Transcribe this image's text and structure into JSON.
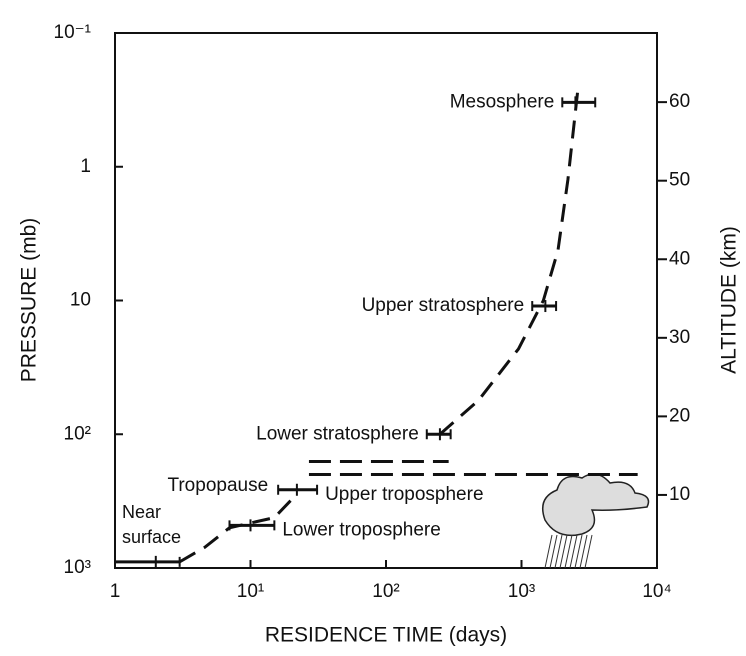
{
  "chart_data": {
    "type": "errorbar",
    "x_label": "RESIDENCE TIME (days)",
    "y_label": "PRESSURE (mb)",
    "y2_label": "ALTITUDE (km)",
    "xscale": "log",
    "yscale": "log",
    "xlim": [
      1,
      10000
    ],
    "ylim": [
      1000,
      0.1
    ],
    "y2lim": [
      0.7,
      68.8
    ],
    "xticks": [
      1,
      {
        "value": 10,
        "label": "10¹"
      },
      {
        "value": 100,
        "label": "10²"
      },
      {
        "value": 1000,
        "label": "10³"
      },
      {
        "value": 10000,
        "label": "10⁴"
      }
    ],
    "yticks": [
      {
        "value": 0.1,
        "label": "10⁻¹"
      },
      1,
      10,
      {
        "value": 100,
        "label": "10²"
      },
      {
        "value": 1000,
        "label": "10³"
      }
    ],
    "y2ticks": [
      10,
      20,
      30,
      40,
      50,
      60
    ],
    "color": "#111111",
    "points": {
      "labels": [
        "Mesosphere",
        "Upper stratosphere",
        "Lower stratosphere",
        "Upper troposphere",
        "Lower troposphere",
        "Near surface"
      ],
      "x": [
        2500,
        1500,
        250,
        22,
        10,
        2
      ],
      "xmin": [
        2000,
        1200,
        200,
        16,
        7,
        1
      ],
      "xmax": [
        3500,
        1800,
        300,
        31,
        15,
        3
      ],
      "y": [
        0.33,
        11,
        100,
        260,
        480,
        900
      ]
    },
    "profile": {
      "x": [
        3,
        4.6,
        7,
        15,
        22,
        null,
        250,
        480,
        950,
        1450,
        1860,
        2200,
        2600
      ],
      "y": [
        900,
        700,
        500,
        420,
        280,
        null,
        100,
        56,
        23,
        10,
        4.2,
        1.25,
        0.27
      ]
    },
    "tropopause": {
      "label": "Tropopause",
      "lines": [
        {
          "y": 160,
          "x": [
            27,
            290
          ]
        },
        {
          "y": 200,
          "x": [
            27,
            7200
          ]
        }
      ]
    }
  }
}
